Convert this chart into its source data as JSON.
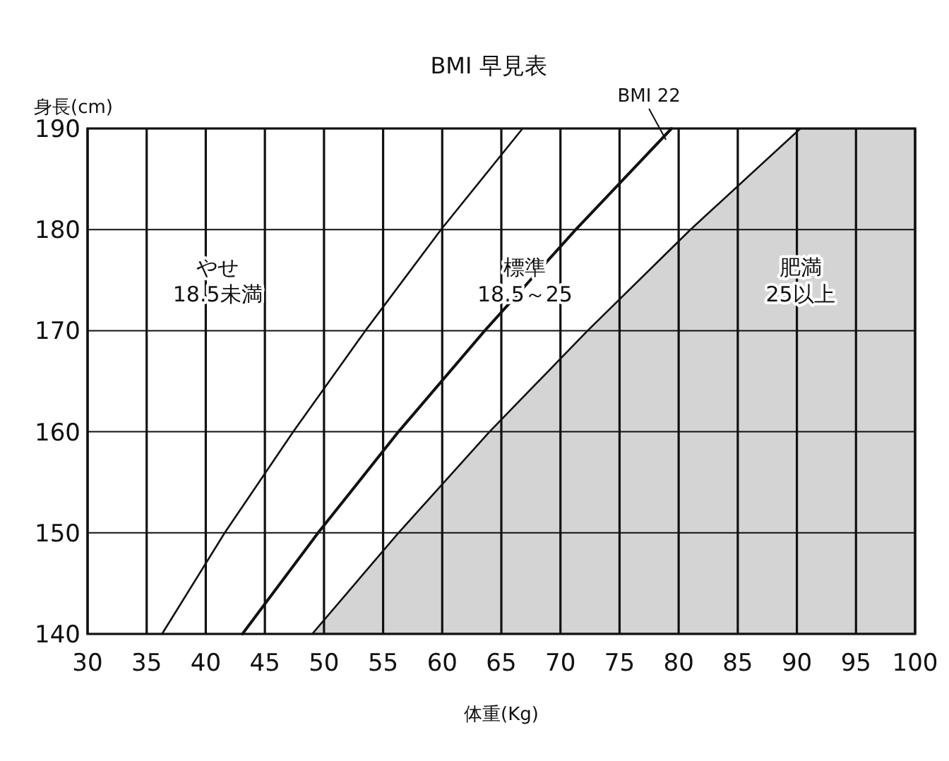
{
  "chart_data": {
    "type": "line",
    "title": "BMI 早見表",
    "xlabel": "体重(Kg)",
    "ylabel": "身長(cm)",
    "xlim": [
      30,
      100
    ],
    "ylim": [
      140,
      190
    ],
    "xticks": [
      30,
      35,
      40,
      45,
      50,
      55,
      60,
      65,
      70,
      75,
      80,
      85,
      90,
      95,
      100
    ],
    "yticks": [
      140,
      150,
      160,
      170,
      180,
      190
    ],
    "grid": true,
    "legend": false,
    "marker": "none",
    "line_style": "solid",
    "series": [
      {
        "type": "area",
        "color": "#d4d4d4",
        "x": [
          49,
          56.3,
          64,
          72.3,
          81,
          90.3,
          100
        ],
        "values": [
          140,
          150,
          160,
          170,
          180,
          190,
          190
        ]
      },
      {
        "color": "#111111",
        "x": [
          36.3,
          41.6,
          47.4,
          53.5,
          59.9,
          66.8
        ],
        "values": [
          140,
          150,
          160,
          170,
          180,
          190
        ]
      },
      {
        "name": "BMI 22",
        "color": "#111111",
        "x": [
          43.1,
          49.5,
          56.3,
          63.6,
          71.3,
          79.4
        ],
        "values": [
          140,
          150,
          160,
          170,
          180,
          190
        ]
      }
    ],
    "annotations": [
      "やせ\n18.5未満",
      "標準\n18.5～25",
      "肥満\n25以上"
    ]
  }
}
